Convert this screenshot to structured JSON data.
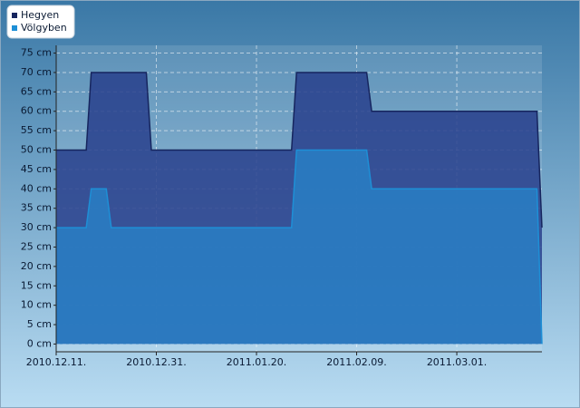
{
  "chart_data": {
    "type": "area",
    "x": [
      "2010-12-11",
      "2010-12-17",
      "2010-12-18",
      "2010-12-21",
      "2010-12-22",
      "2010-12-29",
      "2010-12-30",
      "2011-01-27",
      "2011-01-28",
      "2011-02-11",
      "2011-02-12",
      "2011-03-17",
      "2011-03-18"
    ],
    "series": [
      {
        "name": "Hegyen",
        "color": "#16255e",
        "values": [
          50,
          50,
          70,
          70,
          70,
          70,
          50,
          50,
          70,
          70,
          60,
          60,
          30
        ]
      },
      {
        "name": "Völgyben",
        "color": "#1e8fd6",
        "values": [
          30,
          30,
          40,
          40,
          30,
          30,
          30,
          30,
          50,
          50,
          40,
          40,
          0
        ]
      }
    ],
    "xlim": [
      "2010-12-11",
      "2011-03-18"
    ],
    "xticks": [
      {
        "value": "2010-12-11",
        "label": "2010.12.11."
      },
      {
        "value": "2010-12-31",
        "label": "2010.12.31."
      },
      {
        "value": "2011-01-20",
        "label": "2011.01.20."
      },
      {
        "value": "2011-02-09",
        "label": "2011.02.09."
      },
      {
        "value": "2011-03-01",
        "label": "2011.03.01."
      }
    ],
    "ylim": [
      -2,
      77
    ],
    "yticks": [
      {
        "value": 0,
        "label": "0 cm"
      },
      {
        "value": 5,
        "label": "5 cm"
      },
      {
        "value": 10,
        "label": "10 cm"
      },
      {
        "value": 15,
        "label": "15 cm"
      },
      {
        "value": 20,
        "label": "20 cm"
      },
      {
        "value": 25,
        "label": "25 cm"
      },
      {
        "value": 30,
        "label": "30 cm"
      },
      {
        "value": 35,
        "label": "35 cm"
      },
      {
        "value": 40,
        "label": "40 cm"
      },
      {
        "value": 45,
        "label": "45 cm"
      },
      {
        "value": 50,
        "label": "50 cm"
      },
      {
        "value": 55,
        "label": "55 cm"
      },
      {
        "value": 60,
        "label": "60 cm"
      },
      {
        "value": 65,
        "label": "65 cm"
      },
      {
        "value": 70,
        "label": "70 cm"
      },
      {
        "value": 75,
        "label": "75 cm"
      }
    ],
    "grid": true,
    "legend": "top-left"
  }
}
